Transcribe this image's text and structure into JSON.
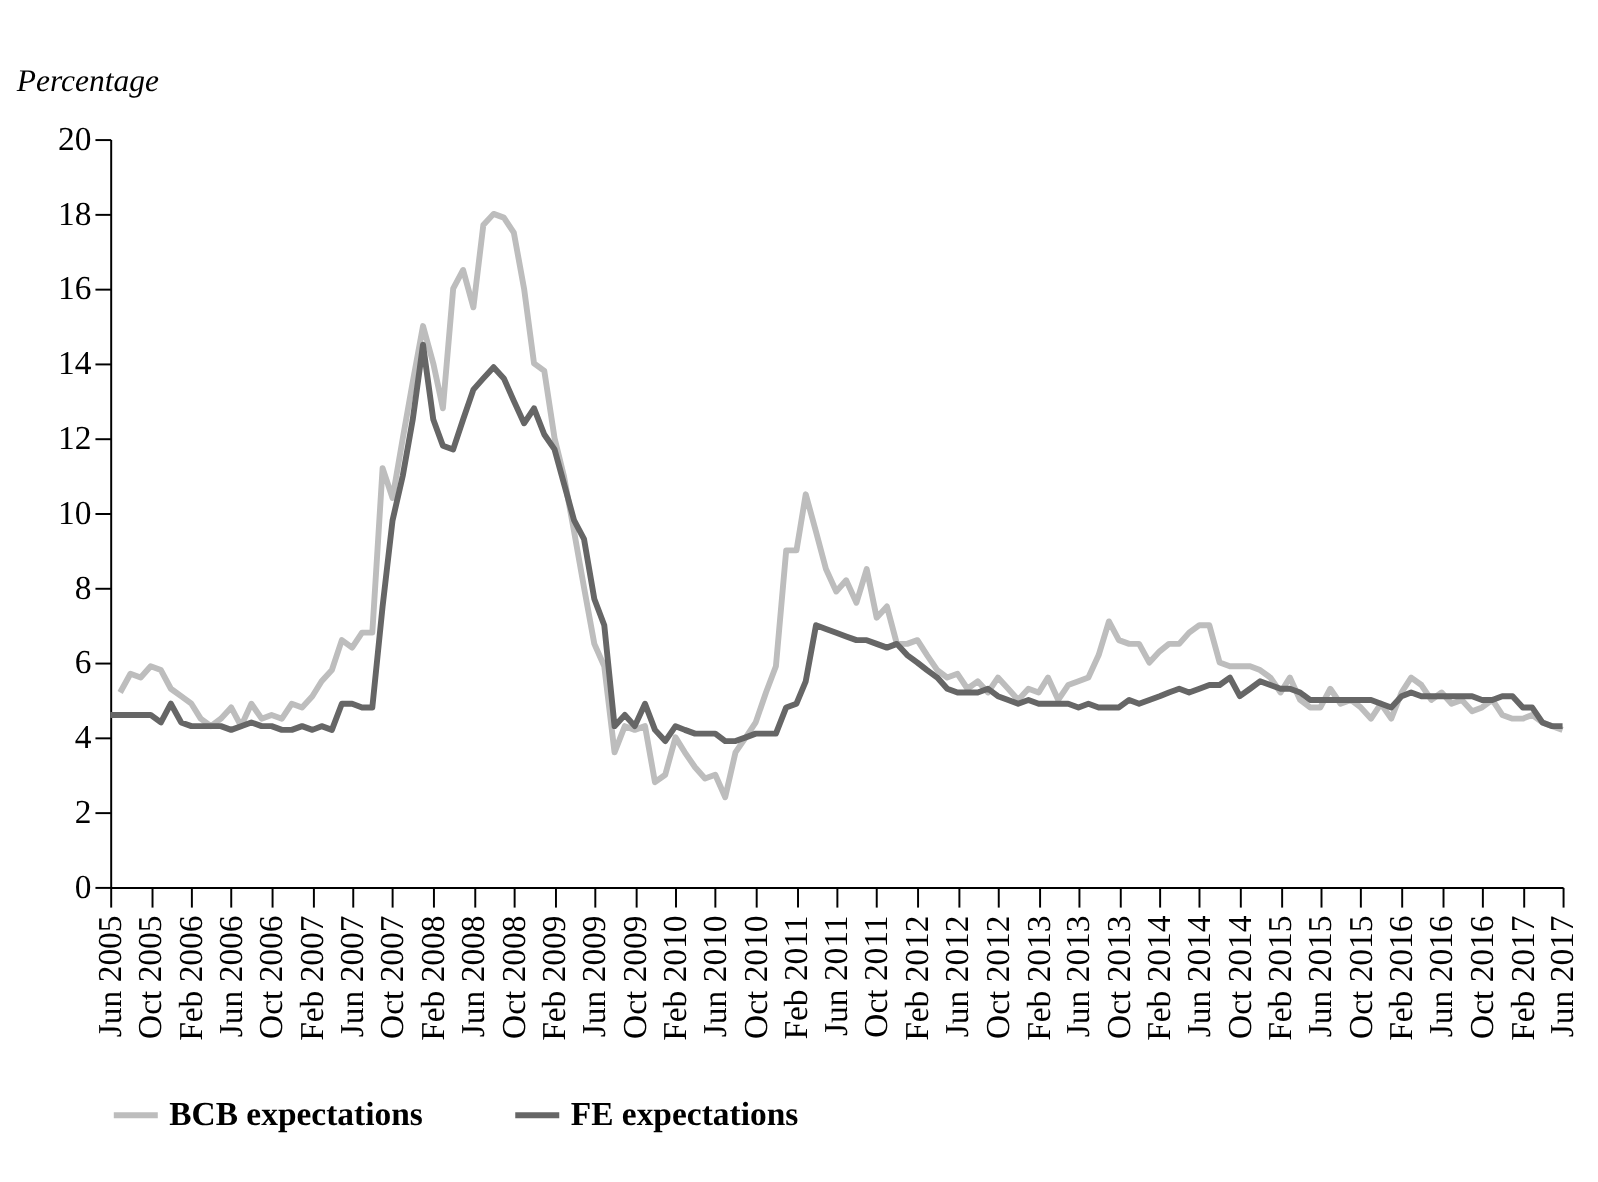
{
  "chart_data": {
    "type": "line",
    "ylabel": "Percentage",
    "x": [
      "2005-06",
      "2005-07",
      "2005-08",
      "2005-09",
      "2005-10",
      "2005-11",
      "2005-12",
      "2006-01",
      "2006-02",
      "2006-03",
      "2006-04",
      "2006-05",
      "2006-06",
      "2006-07",
      "2006-08",
      "2006-09",
      "2006-10",
      "2006-11",
      "2006-12",
      "2007-01",
      "2007-02",
      "2007-03",
      "2007-04",
      "2007-05",
      "2007-06",
      "2007-07",
      "2007-08",
      "2007-09",
      "2007-10",
      "2007-11",
      "2007-12",
      "2008-01",
      "2008-02",
      "2008-03",
      "2008-04",
      "2008-05",
      "2008-06",
      "2008-07",
      "2008-08",
      "2008-09",
      "2008-10",
      "2008-11",
      "2008-12",
      "2009-01",
      "2009-02",
      "2009-03",
      "2009-04",
      "2009-05",
      "2009-06",
      "2009-07",
      "2009-08",
      "2009-09",
      "2009-10",
      "2009-11",
      "2009-12",
      "2010-01",
      "2010-02",
      "2010-03",
      "2010-04",
      "2010-05",
      "2010-06",
      "2010-07",
      "2010-08",
      "2010-09",
      "2010-10",
      "2010-11",
      "2010-12",
      "2011-01",
      "2011-02",
      "2011-03",
      "2011-04",
      "2011-05",
      "2011-06",
      "2011-07",
      "2011-08",
      "2011-09",
      "2011-10",
      "2011-11",
      "2011-12",
      "2012-01",
      "2012-02",
      "2012-03",
      "2012-04",
      "2012-05",
      "2012-06",
      "2012-07",
      "2012-08",
      "2012-09",
      "2012-10",
      "2012-11",
      "2012-12",
      "2013-01",
      "2013-02",
      "2013-03",
      "2013-04",
      "2013-05",
      "2013-06",
      "2013-07",
      "2013-08",
      "2013-09",
      "2013-10",
      "2013-11",
      "2013-12",
      "2014-01",
      "2014-02",
      "2014-03",
      "2014-04",
      "2014-05",
      "2014-06",
      "2014-07",
      "2014-08",
      "2014-09",
      "2014-10",
      "2014-11",
      "2014-12",
      "2015-01",
      "2015-02",
      "2015-03",
      "2015-04",
      "2015-05",
      "2015-06",
      "2015-07",
      "2015-08",
      "2015-09",
      "2015-10",
      "2015-11",
      "2015-12",
      "2016-01",
      "2016-02",
      "2016-03",
      "2016-04",
      "2016-05",
      "2016-06",
      "2016-07",
      "2016-08",
      "2016-09",
      "2016-10",
      "2016-11",
      "2016-12",
      "2017-01",
      "2017-02",
      "2017-03",
      "2017-04",
      "2017-05",
      "2017-06"
    ],
    "series": [
      {
        "name": "BCB expectations",
        "color": "#bdbdbd",
        "values": [
          null,
          5.2,
          5.7,
          5.6,
          5.9,
          5.8,
          5.3,
          5.1,
          4.9,
          4.5,
          4.3,
          4.5,
          4.8,
          4.3,
          4.9,
          4.5,
          4.6,
          4.5,
          4.9,
          4.8,
          5.1,
          5.5,
          5.8,
          6.6,
          6.4,
          6.8,
          6.8,
          11.2,
          10.4,
          12.0,
          13.5,
          15.0,
          14.0,
          12.8,
          16.0,
          16.5,
          15.5,
          17.7,
          18.0,
          17.9,
          17.5,
          16.0,
          14.0,
          13.8,
          12.0,
          11.0,
          9.5,
          8.0,
          6.5,
          5.9,
          3.6,
          4.3,
          4.2,
          4.3,
          2.8,
          3.0,
          4.0,
          3.6,
          3.2,
          2.9,
          3.0,
          2.4,
          3.6,
          4.0,
          4.4,
          5.2,
          5.9,
          9.0,
          9.0,
          10.5,
          9.5,
          8.5,
          7.9,
          8.2,
          7.6,
          8.5,
          7.2,
          7.5,
          6.5,
          6.5,
          6.6,
          6.2,
          5.8,
          5.6,
          5.7,
          5.3,
          5.5,
          5.2,
          5.6,
          5.3,
          5.0,
          5.3,
          5.2,
          5.6,
          5.0,
          5.4,
          5.5,
          5.6,
          6.2,
          7.1,
          6.6,
          6.5,
          6.5,
          6.0,
          6.3,
          6.5,
          6.5,
          6.8,
          7.0,
          7.0,
          6.0,
          5.9,
          5.9,
          5.9,
          5.8,
          5.6,
          5.2,
          5.6,
          5.0,
          4.8,
          4.8,
          5.3,
          4.9,
          5.0,
          4.8,
          4.5,
          4.9,
          4.5,
          5.2,
          5.6,
          5.4,
          5.0,
          5.2,
          4.9,
          5.0,
          4.7,
          4.8,
          5.0,
          4.6,
          4.5,
          4.5,
          4.6,
          4.4,
          4.3,
          4.2
        ]
      },
      {
        "name": "FE expectations",
        "color": "#666666",
        "values": [
          4.6,
          4.6,
          4.6,
          4.6,
          4.6,
          4.4,
          4.9,
          4.4,
          4.3,
          4.3,
          4.3,
          4.3,
          4.2,
          4.3,
          4.4,
          4.3,
          4.3,
          4.2,
          4.2,
          4.3,
          4.2,
          4.3,
          4.2,
          4.9,
          4.9,
          4.8,
          4.8,
          7.5,
          9.8,
          11.0,
          12.5,
          14.5,
          12.5,
          11.8,
          11.7,
          12.5,
          13.3,
          13.6,
          13.9,
          13.6,
          13.0,
          12.4,
          12.8,
          12.1,
          11.7,
          10.8,
          9.8,
          9.3,
          7.7,
          7.0,
          4.3,
          4.6,
          4.3,
          4.9,
          4.2,
          3.9,
          4.3,
          4.2,
          4.1,
          4.1,
          4.1,
          3.9,
          3.9,
          4.0,
          4.1,
          4.1,
          4.1,
          4.8,
          4.9,
          5.5,
          7.0,
          6.9,
          6.8,
          6.7,
          6.6,
          6.6,
          6.5,
          6.4,
          6.5,
          6.2,
          6.0,
          5.8,
          5.6,
          5.3,
          5.2,
          5.2,
          5.2,
          5.3,
          5.1,
          5.0,
          4.9,
          5.0,
          4.9,
          4.9,
          4.9,
          4.9,
          4.8,
          4.9,
          4.8,
          4.8,
          4.8,
          5.0,
          4.9,
          5.0,
          5.1,
          5.2,
          5.3,
          5.2,
          5.3,
          5.4,
          5.4,
          5.6,
          5.1,
          5.3,
          5.5,
          5.4,
          5.3,
          5.3,
          5.2,
          5.0,
          5.0,
          5.0,
          5.0,
          5.0,
          5.0,
          5.0,
          4.9,
          4.8,
          5.1,
          5.2,
          5.1,
          5.1,
          5.1,
          5.1,
          5.1,
          5.1,
          5.0,
          5.0,
          5.1,
          5.1,
          4.8,
          4.8,
          4.4,
          4.3,
          4.3
        ]
      }
    ],
    "xlim": [
      "2005-06",
      "2017-06"
    ],
    "xticks": [
      {
        "value": "2005-06",
        "label": "Jun 2005"
      },
      {
        "value": "2005-10",
        "label": "Oct 2005"
      },
      {
        "value": "2006-02",
        "label": "Feb 2006"
      },
      {
        "value": "2006-06",
        "label": "Jun 2006"
      },
      {
        "value": "2006-10",
        "label": "Oct 2006"
      },
      {
        "value": "2007-02",
        "label": "Feb 2007"
      },
      {
        "value": "2007-06",
        "label": "Jun 2007"
      },
      {
        "value": "2007-10",
        "label": "Oct 2007"
      },
      {
        "value": "2008-02",
        "label": "Feb 2008"
      },
      {
        "value": "2008-06",
        "label": "Jun 2008"
      },
      {
        "value": "2008-10",
        "label": "Oct 2008"
      },
      {
        "value": "2009-02",
        "label": "Feb 2009"
      },
      {
        "value": "2009-06",
        "label": "Jun 2009"
      },
      {
        "value": "2009-10",
        "label": "Oct 2009"
      },
      {
        "value": "2010-02",
        "label": "Feb 2010"
      },
      {
        "value": "2010-06",
        "label": "Jun 2010"
      },
      {
        "value": "2010-10",
        "label": "Oct 2010"
      },
      {
        "value": "2011-02",
        "label": "Feb 2011"
      },
      {
        "value": "2011-06",
        "label": "Jun 2011"
      },
      {
        "value": "2011-10",
        "label": "Oct 2011"
      },
      {
        "value": "2012-02",
        "label": "Feb 2012"
      },
      {
        "value": "2012-06",
        "label": "Jun 2012"
      },
      {
        "value": "2012-10",
        "label": "Oct 2012"
      },
      {
        "value": "2013-02",
        "label": "Feb 2013"
      },
      {
        "value": "2013-06",
        "label": "Jun 2013"
      },
      {
        "value": "2013-10",
        "label": "Oct 2013"
      },
      {
        "value": "2014-02",
        "label": "Feb 2014"
      },
      {
        "value": "2014-06",
        "label": "Jun 2014"
      },
      {
        "value": "2014-10",
        "label": "Oct 2014"
      },
      {
        "value": "2015-02",
        "label": "Feb 2015"
      },
      {
        "value": "2015-06",
        "label": "Jun 2015"
      },
      {
        "value": "2015-10",
        "label": "Oct 2015"
      },
      {
        "value": "2016-02",
        "label": "Feb 2016"
      },
      {
        "value": "2016-06",
        "label": "Jun 2016"
      },
      {
        "value": "2016-10",
        "label": "Oct 2016"
      },
      {
        "value": "2017-02",
        "label": "Feb 2017"
      },
      {
        "value": "2017-06",
        "label": "Jun 2017"
      }
    ],
    "ylim": [
      0,
      20
    ],
    "yticks": [
      0,
      2,
      4,
      6,
      8,
      10,
      12,
      14,
      16,
      18,
      20
    ],
    "grid": false,
    "legend": "bottom",
    "line_style": "solid",
    "marker": "none"
  }
}
